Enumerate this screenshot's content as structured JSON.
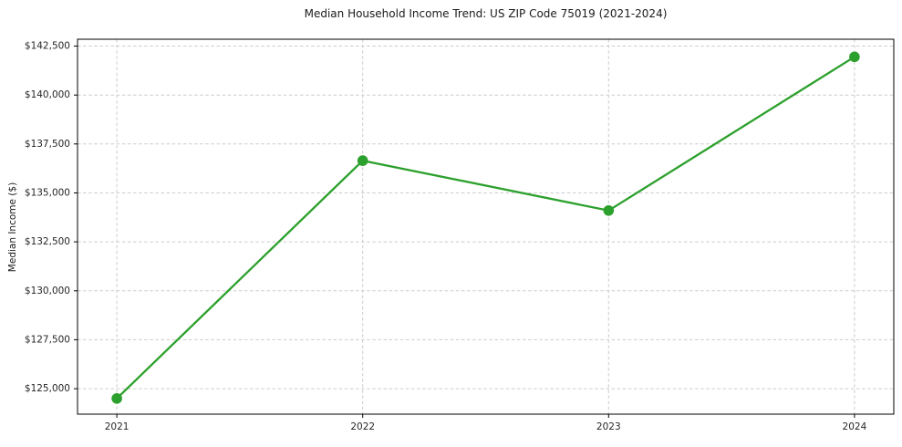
{
  "figure": {
    "background": "#ffffff"
  },
  "chart_data": {
    "type": "line",
    "title": "Median Household Income Trend: US ZIP Code 75019 (2021-2024)",
    "xlabel": "",
    "ylabel": "Median Income ($)",
    "x": [
      2021,
      2022,
      2023,
      2024
    ],
    "x_tick_labels": [
      "2021",
      "2022",
      "2023",
      "2024"
    ],
    "series": [
      {
        "values": [
          124500,
          136650,
          134100,
          141950
        ],
        "color": "#2ca02c",
        "marker": "circle",
        "line_width": 2.3,
        "marker_radius": 5.8
      }
    ],
    "y_ticks": [
      125000,
      127500,
      130000,
      132500,
      135000,
      137500,
      140000,
      142500
    ],
    "y_tick_labels": [
      "$125,000",
      "$127,500",
      "$130,000",
      "$132,500",
      "$135,000",
      "$137,500",
      "$140,000",
      "$142,500"
    ],
    "xlim": [
      2020.84,
      2024.16
    ],
    "ylim": [
      123700,
      142850
    ],
    "grid": {
      "visible": true,
      "line_style": "dashed",
      "color": "#cccccc"
    },
    "legend": {
      "visible": false
    },
    "colors": {
      "line": "#2ca02c",
      "spine": "#000000",
      "tick_label": "#262626",
      "title": "#1a1a1a",
      "background": "#ffffff"
    }
  }
}
